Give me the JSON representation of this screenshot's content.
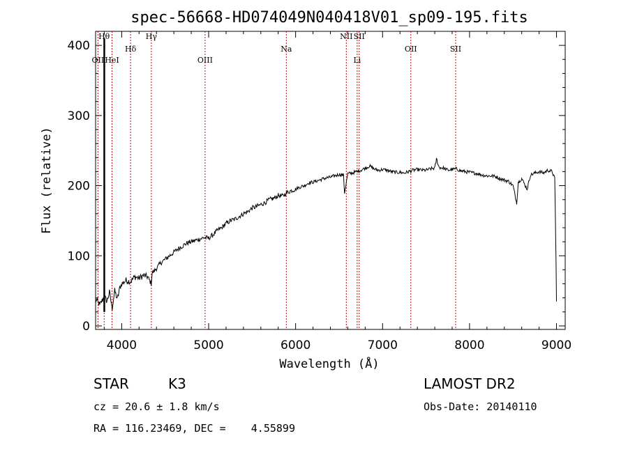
{
  "chart_data": {
    "type": "line",
    "title": "spec-56668-HD074049N040418V01_sp09-195.fits",
    "xlabel": "Wavelength (Å)",
    "ylabel": "Flux (relative)",
    "xlim": [
      3700,
      9100
    ],
    "ylim": [
      -5,
      420
    ],
    "xticks": [
      4000,
      5000,
      6000,
      7000,
      8000,
      9000
    ],
    "yticks": [
      0,
      100,
      200,
      300,
      400
    ],
    "grid": false,
    "series": [
      {
        "x": [
          3700,
          3750,
          3800,
          3830,
          3860,
          3890,
          3920,
          3950,
          3980,
          4000,
          4050,
          4100,
          4150,
          4200,
          4250,
          4300,
          4340,
          4350,
          4400,
          4450,
          4500,
          4550,
          4600,
          4650,
          4700,
          4750,
          4800,
          4850,
          4900,
          4950,
          5000,
          5050,
          5100,
          5150,
          5200,
          5250,
          5300,
          5350,
          5400,
          5450,
          5500,
          5550,
          5600,
          5650,
          5700,
          5750,
          5800,
          5850,
          5900,
          5950,
          6000,
          6050,
          6100,
          6150,
          6200,
          6250,
          6300,
          6350,
          6400,
          6450,
          6500,
          6550,
          6563,
          6600,
          6650,
          6700,
          6750,
          6800,
          6850,
          6900,
          6950,
          7000,
          7050,
          7100,
          7150,
          7200,
          7250,
          7300,
          7350,
          7400,
          7450,
          7500,
          7550,
          7600,
          7620,
          7650,
          7700,
          7750,
          7800,
          7850,
          7900,
          7950,
          8000,
          8050,
          8100,
          8150,
          8200,
          8250,
          8300,
          8350,
          8400,
          8450,
          8500,
          8542,
          8560,
          8600,
          8662,
          8700,
          8750,
          8800,
          8850,
          8900,
          8950,
          8980,
          8995,
          9000
        ],
        "y": [
          38,
          30,
          42,
          35,
          48,
          25,
          50,
          38,
          55,
          60,
          65,
          63,
          70,
          68,
          72,
          70,
          60,
          75,
          82,
          90,
          95,
          100,
          105,
          110,
          114,
          118,
          120,
          122,
          124,
          126,
          125,
          130,
          136,
          140,
          146,
          150,
          152,
          156,
          160,
          163,
          168,
          170,
          173,
          176,
          180,
          182,
          186,
          185,
          190,
          193,
          195,
          198,
          200,
          204,
          205,
          207,
          209,
          211,
          212,
          214,
          216,
          215,
          190,
          217,
          218,
          220,
          222,
          225,
          228,
          224,
          222,
          223,
          222,
          220,
          219,
          219,
          218,
          220,
          222,
          223,
          222,
          222,
          224,
          225,
          238,
          226,
          225,
          222,
          223,
          224,
          221,
          220,
          219,
          218,
          217,
          215,
          214,
          214,
          213,
          210,
          208,
          206,
          200,
          175,
          205,
          210,
          195,
          215,
          218,
          220,
          218,
          222,
          220,
          210,
          90,
          35
        ]
      }
    ],
    "reference_lines": [
      {
        "label": "OII",
        "x": 3727
      },
      {
        "label": "Hθ",
        "x": 3798
      },
      {
        "label": "HeI",
        "x": 3889
      },
      {
        "label": "Hδ",
        "x": 4102
      },
      {
        "label": "Hγ",
        "x": 4341
      },
      {
        "label": "OIII",
        "x": 4959
      },
      {
        "label": "Na",
        "x": 5893
      },
      {
        "label": "NII",
        "x": 6583
      },
      {
        "label": "Li",
        "x": 6708
      },
      {
        "label": "SII",
        "x": 6731
      },
      {
        "label": "OII",
        "x": 7325
      },
      {
        "label": "SII",
        "x": 7840
      }
    ]
  },
  "footer": {
    "object_class": "STAR",
    "subclass": "K3",
    "survey": "LAMOST DR2",
    "cz": "cz = 20.6 ± 1.8 km/s",
    "obs_date": "Obs-Date: 20140110",
    "coords": "RA = 116.23469, DEC =    4.55899"
  },
  "colors": {
    "spectrum": "#000000",
    "reference_line": "#cc0000",
    "axes": "#000000"
  }
}
